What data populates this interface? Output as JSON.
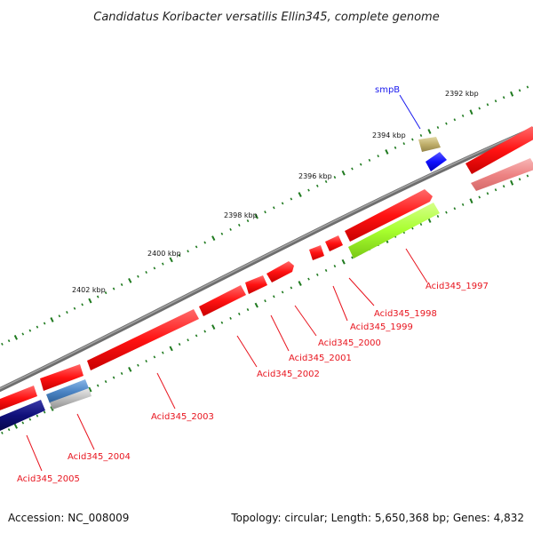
{
  "title": "Candidatus Koribacter versatilis Ellin345, complete genome",
  "footer": {
    "accession": "Accession: NC_008009",
    "summary": "Topology: circular; Length: 5,650,368 bp; Genes: 4,832"
  },
  "colors": {
    "backbone": "#858585",
    "tick": "#1f7a1f",
    "gene_red": "#ff1a1a",
    "gene_pink": "#f08c8c",
    "gene_olive": "#c2b473",
    "gene_blue": "#1414ff",
    "gene_navy": "#10107a",
    "gene_steel": "#4d86c6",
    "gene_lime": "#a8ff2e",
    "label_red": "#e8141e",
    "label_blue": "#1a1aee"
  },
  "scale_labels": [
    "2392 kbp",
    "2394 kbp",
    "2396 kbp",
    "2398 kbp",
    "2400 kbp",
    "2402 kbp"
  ],
  "genes": [
    {
      "label": "smpB",
      "color_key": "label_blue"
    },
    {
      "label": "Acid345_1997",
      "color_key": "label_red"
    },
    {
      "label": "Acid345_1998",
      "color_key": "label_red"
    },
    {
      "label": "Acid345_1999",
      "color_key": "label_red"
    },
    {
      "label": "Acid345_2000",
      "color_key": "label_red"
    },
    {
      "label": "Acid345_2001",
      "color_key": "label_red"
    },
    {
      "label": "Acid345_2002",
      "color_key": "label_red"
    },
    {
      "label": "Acid345_2003",
      "color_key": "label_red"
    },
    {
      "label": "Acid345_2004",
      "color_key": "label_red"
    },
    {
      "label": "Acid345_2005",
      "color_key": "label_red"
    }
  ]
}
